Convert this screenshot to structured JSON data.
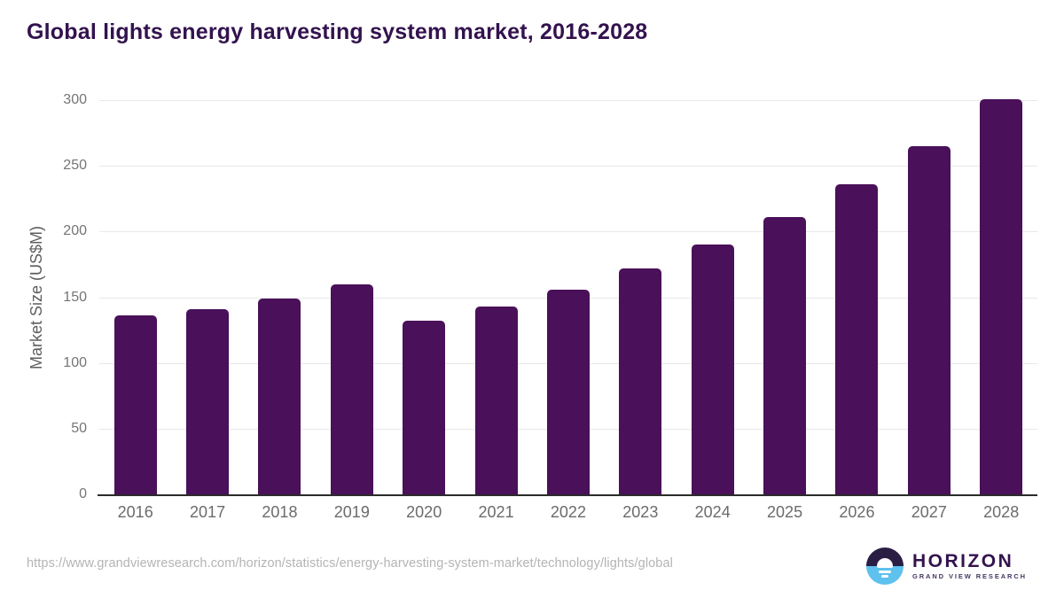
{
  "title": "Global lights energy harvesting system market, 2016-2028",
  "chart_data": {
    "type": "bar",
    "title": "Global lights energy harvesting system market, 2016-2028",
    "categories": [
      "2016",
      "2017",
      "2018",
      "2019",
      "2020",
      "2021",
      "2022",
      "2023",
      "2024",
      "2025",
      "2026",
      "2027",
      "2028"
    ],
    "values": [
      136,
      141,
      149,
      160,
      132,
      143,
      156,
      172,
      190,
      211,
      236,
      265,
      301
    ],
    "xlabel": "",
    "ylabel": "Market Size (US$M)",
    "ylim": [
      0,
      300
    ],
    "yticks": [
      0,
      50,
      100,
      150,
      200,
      250,
      300
    ],
    "grid": true,
    "legend": false,
    "bar_color": "#4a1059"
  },
  "footer": {
    "source_url": "https://www.grandviewresearch.com/horizon/statistics/energy-harvesting-system-market/technology/lights/global",
    "logo": {
      "brand": "HORIZON",
      "sub_brand": "GRAND VIEW RESEARCH"
    }
  },
  "colors": {
    "title_text": "#33124e",
    "bar": "#4a1059",
    "gridline": "#e8e8e8",
    "baseline": "#2b2b2b",
    "tick_text": "#757575",
    "xlabel_text": "#6b6b6b",
    "url_text": "#b4b4b4",
    "logo_top": "#2a1e44",
    "logo_bottom": "#5ec1ee"
  }
}
